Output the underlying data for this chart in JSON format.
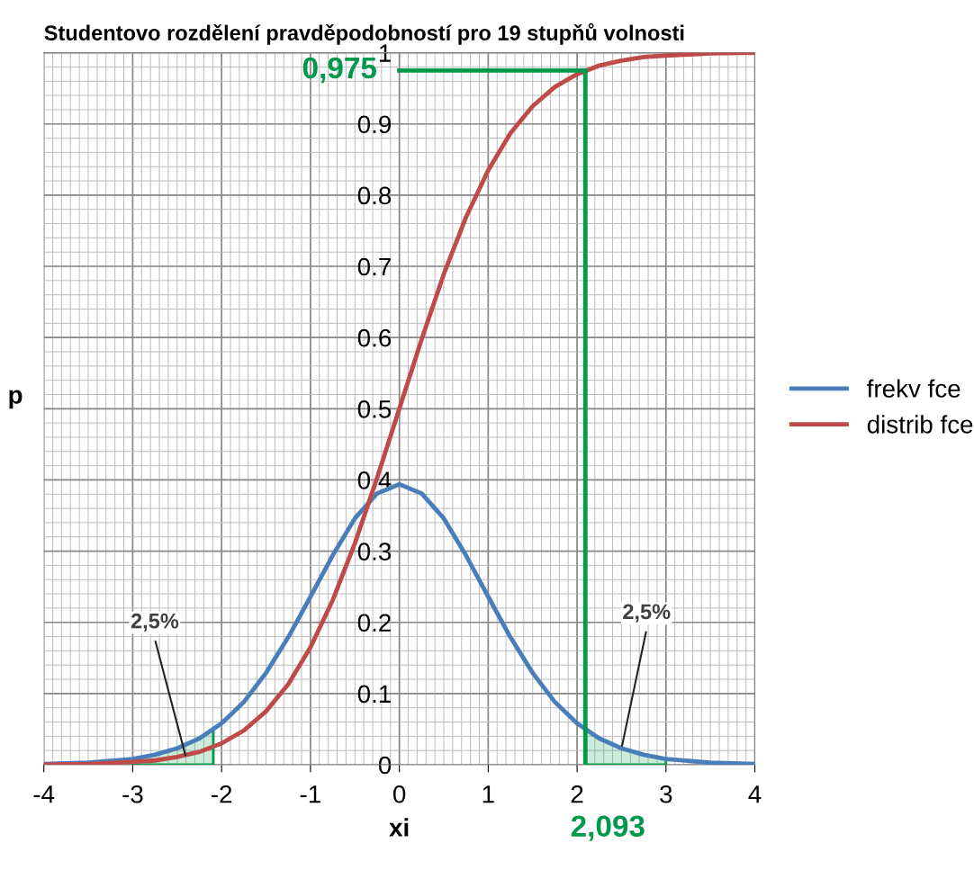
{
  "chart_data": {
    "type": "line",
    "title": "Studentovo rozdělení pravděpodobností pro 19 stupňů volnosti",
    "xlabel": "xi",
    "ylabel": "p",
    "x": [
      -4,
      -3.5,
      -3,
      -2.75,
      -2.5,
      -2.25,
      -2,
      -1.75,
      -1.5,
      -1.25,
      -1,
      -0.75,
      -0.5,
      -0.25,
      0,
      0.25,
      0.5,
      0.75,
      1,
      1.25,
      1.5,
      1.75,
      2,
      2.25,
      2.5,
      2.75,
      3,
      3.5,
      4
    ],
    "series": [
      {
        "name": "frekv fce",
        "color": "#4a7ebb",
        "values": [
          0.001,
          0.003,
          0.008,
          0.014,
          0.023,
          0.037,
          0.058,
          0.088,
          0.129,
          0.179,
          0.236,
          0.294,
          0.346,
          0.381,
          0.394,
          0.381,
          0.346,
          0.294,
          0.236,
          0.179,
          0.129,
          0.088,
          0.058,
          0.037,
          0.023,
          0.014,
          0.008,
          0.003,
          0.001
        ]
      },
      {
        "name": "distrib fce",
        "color": "#be4b48",
        "values": [
          0,
          0.001,
          0.004,
          0.006,
          0.011,
          0.018,
          0.03,
          0.048,
          0.075,
          0.113,
          0.165,
          0.231,
          0.311,
          0.403,
          0.5,
          0.597,
          0.689,
          0.769,
          0.835,
          0.887,
          0.925,
          0.952,
          0.97,
          0.982,
          0.989,
          0.994,
          0.996,
          0.999,
          1
        ]
      },
      {
        "type": "area",
        "color": "#00994c",
        "x": [
          -3,
          -2.75,
          -2.5,
          -2.25,
          -2.093
        ],
        "values": [
          0.008,
          0.014,
          0.023,
          0.037,
          0.049
        ]
      },
      {
        "type": "area",
        "color": "#00994c",
        "x": [
          2.093,
          2.25,
          2.5,
          2.75,
          3
        ],
        "values": [
          0.049,
          0.037,
          0.023,
          0.014,
          0.008
        ]
      }
    ],
    "xlim": [
      -4,
      4
    ],
    "xticks": [
      -4,
      -3,
      -2,
      -1,
      0,
      1,
      2,
      3,
      4
    ],
    "ylim": [
      0,
      1
    ],
    "yticks": [
      {
        "value": 0,
        "label": "0"
      },
      {
        "value": 0.1,
        "label": "0.1"
      },
      {
        "value": 0.2,
        "label": "0.2"
      },
      {
        "value": 0.3,
        "label": "0.3"
      },
      {
        "value": 0.4,
        "label": "0.4"
      },
      {
        "value": 0.5,
        "label": "0.5"
      },
      {
        "value": 0.6,
        "label": "0.6"
      },
      {
        "value": 0.7,
        "label": "0.7"
      },
      {
        "value": 0.8,
        "label": "0.8"
      },
      {
        "value": 0.9,
        "label": "0.9"
      },
      {
        "value": 1,
        "label": "1"
      }
    ],
    "ref_lines": [
      {
        "axis": "y",
        "value": 0.975,
        "label": "0,975",
        "color": "#00994c"
      },
      {
        "axis": "x",
        "value": 2.093,
        "label": "2,093",
        "color": "#00994c"
      }
    ],
    "annotations": [
      {
        "text": "2,5%",
        "x": -2.4,
        "y": 0.01
      },
      {
        "text": "2,5%",
        "x": 2.5,
        "y": 0.023
      }
    ],
    "grid": true,
    "legend": "right",
    "marker": "none",
    "line_style": "solid"
  }
}
